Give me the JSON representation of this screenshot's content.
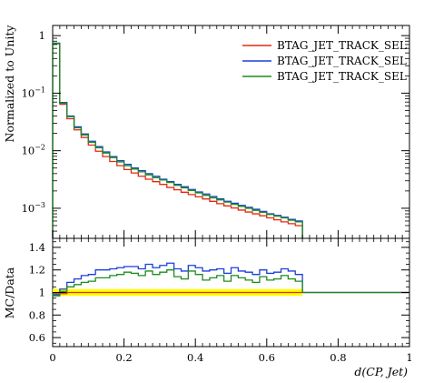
{
  "chart_data": [
    {
      "type": "line",
      "panel": "main",
      "ylabel": "Normalized to Unity",
      "yscale": "log",
      "ylim": [
        0.0003,
        1.5
      ],
      "xlim": [
        0,
        1
      ],
      "y_tick_labels": [
        "1",
        "10",
        "10",
        "10"
      ],
      "y_tick_exponents": [
        "",
        "−1",
        "−2",
        "−3"
      ],
      "legend_position": "top-right",
      "bin_edges": [
        0,
        0.02,
        0.04,
        0.06,
        0.08,
        0.1,
        0.12,
        0.14,
        0.16,
        0.18,
        0.2,
        0.22,
        0.24,
        0.26,
        0.28,
        0.3,
        0.32,
        0.34,
        0.36,
        0.38,
        0.4,
        0.42,
        0.44,
        0.46,
        0.48,
        0.5,
        0.52,
        0.54,
        0.56,
        0.58,
        0.6,
        0.62,
        0.64,
        0.66,
        0.68,
        0.7
      ],
      "series": [
        {
          "name": "BTAG_JET_TRACK_SEL",
          "color": "#e3290e",
          "values": [
            0.72,
            0.064,
            0.036,
            0.023,
            0.017,
            0.0125,
            0.0098,
            0.0079,
            0.0065,
            0.0055,
            0.0047,
            0.0041,
            0.0036,
            0.0032,
            0.0029,
            0.0026,
            0.0023,
            0.0021,
            0.0019,
            0.00173,
            0.00158,
            0.00145,
            0.00132,
            0.0012,
            0.0011,
            0.00101,
            0.00093,
            0.00086,
            0.0008,
            0.00074,
            0.00068,
            0.00063,
            0.00058,
            0.00054,
            0.0005
          ]
        },
        {
          "name": "BTAG_JET_TRACK_SEL",
          "color": "#1b3fdc",
          "values": [
            0.74,
            0.069,
            0.04,
            0.026,
            0.0195,
            0.0146,
            0.0118,
            0.0095,
            0.0079,
            0.0067,
            0.0058,
            0.005,
            0.0045,
            0.004,
            0.0036,
            0.0032,
            0.0029,
            0.0026,
            0.00236,
            0.00212,
            0.00192,
            0.00177,
            0.0016,
            0.00146,
            0.00132,
            0.00122,
            0.00112,
            0.00104,
            0.00096,
            0.00088,
            0.0008,
            0.00075,
            0.0007,
            0.00064,
            0.0006
          ]
        },
        {
          "name": "BTAG_JET_TRACK_SEL",
          "color": "#1e8c1e",
          "values": [
            0.73,
            0.067,
            0.039,
            0.025,
            0.0188,
            0.014,
            0.0113,
            0.0091,
            0.0076,
            0.0064,
            0.0055,
            0.0048,
            0.0043,
            0.0038,
            0.0034,
            0.0031,
            0.0028,
            0.0025,
            0.00226,
            0.00204,
            0.00185,
            0.00168,
            0.00152,
            0.0014,
            0.00128,
            0.00117,
            0.00108,
            0.001,
            0.00092,
            0.00085,
            0.00078,
            0.00073,
            0.00068,
            0.00062,
            0.00058
          ]
        }
      ]
    },
    {
      "type": "line",
      "panel": "ratio",
      "ylabel": "MC/Data",
      "xlabel": "d(CP, Jet)",
      "xlim": [
        0,
        1
      ],
      "ylim": [
        0.52,
        1.48
      ],
      "x_tick_labels": [
        "0",
        "0.2",
        "0.4",
        "0.6",
        "0.8",
        "1"
      ],
      "y_tick_labels": [
        "0.6",
        "0.8",
        "1",
        "1.2",
        "1.4"
      ],
      "band_color": "#ffff00",
      "band": {
        "lower": 0.97,
        "upper": 1.03,
        "x_range": [
          0,
          0.7
        ]
      },
      "reference_line": 1.0,
      "bin_edges": [
        0,
        0.02,
        0.04,
        0.06,
        0.08,
        0.1,
        0.12,
        0.14,
        0.16,
        0.18,
        0.2,
        0.22,
        0.24,
        0.26,
        0.28,
        0.3,
        0.32,
        0.34,
        0.36,
        0.38,
        0.4,
        0.42,
        0.44,
        0.46,
        0.48,
        0.5,
        0.52,
        0.54,
        0.56,
        0.58,
        0.6,
        0.62,
        0.64,
        0.66,
        0.68,
        0.7
      ],
      "series": [
        {
          "name": "BTAG_JET_TRACK_SEL",
          "color": "#e3290e",
          "values": [
            0.99,
            0.99,
            1.0,
            1.0,
            1.0,
            1.0,
            1.0,
            1.0,
            1.0,
            1.0,
            1.0,
            1.0,
            1.0,
            1.0,
            1.0,
            1.0,
            1.0,
            1.0,
            1.0,
            1.0,
            1.0,
            1.0,
            1.0,
            1.0,
            1.0,
            1.0,
            1.0,
            1.0,
            1.0,
            1.0,
            1.0,
            1.0,
            1.0,
            1.0,
            1.0
          ]
        },
        {
          "name": "BTAG_JET_TRACK_SEL",
          "color": "#1b3fdc",
          "values": [
            0.98,
            1.03,
            1.09,
            1.12,
            1.15,
            1.16,
            1.2,
            1.2,
            1.21,
            1.22,
            1.23,
            1.23,
            1.21,
            1.25,
            1.22,
            1.24,
            1.26,
            1.21,
            1.19,
            1.24,
            1.22,
            1.19,
            1.2,
            1.21,
            1.17,
            1.22,
            1.19,
            1.18,
            1.16,
            1.2,
            1.17,
            1.18,
            1.21,
            1.19,
            1.16
          ]
        },
        {
          "name": "BTAG_JET_TRACK_SEL",
          "color": "#1e8c1e",
          "values": [
            0.97,
            1.01,
            1.05,
            1.07,
            1.09,
            1.1,
            1.13,
            1.13,
            1.15,
            1.16,
            1.18,
            1.17,
            1.15,
            1.19,
            1.16,
            1.18,
            1.2,
            1.14,
            1.12,
            1.19,
            1.16,
            1.11,
            1.13,
            1.15,
            1.1,
            1.15,
            1.13,
            1.11,
            1.09,
            1.14,
            1.11,
            1.12,
            1.15,
            1.12,
            1.1
          ]
        }
      ]
    }
  ]
}
